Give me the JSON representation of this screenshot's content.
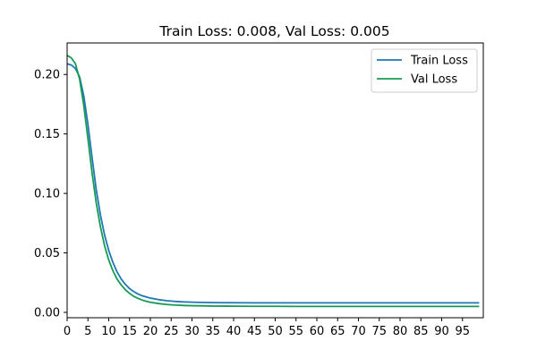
{
  "chart_data": {
    "type": "line",
    "title": "Train Loss: 0.008, Val Loss: 0.005",
    "xlabel": "",
    "ylabel": "",
    "xlim": [
      0,
      100
    ],
    "ylim": [
      -0.0045,
      0.2265
    ],
    "grid": false,
    "legend_position": "top-right",
    "x_ticks": [
      0,
      5,
      10,
      15,
      20,
      25,
      30,
      35,
      40,
      45,
      50,
      55,
      60,
      65,
      70,
      75,
      80,
      85,
      90,
      95
    ],
    "x_tick_labels": [
      "0",
      "5",
      "10",
      "15",
      "20",
      "25",
      "30",
      "35",
      "40",
      "45",
      "50",
      "55",
      "60",
      "65",
      "70",
      "75",
      "80",
      "85",
      "90",
      "95"
    ],
    "y_ticks": [
      0.0,
      0.05,
      0.1,
      0.15,
      0.2
    ],
    "y_tick_labels": [
      "0.00",
      "0.05",
      "0.10",
      "0.15",
      "0.20"
    ],
    "x": [
      0,
      1,
      2,
      3,
      4,
      5,
      6,
      7,
      8,
      9,
      10,
      11,
      12,
      13,
      14,
      15,
      16,
      17,
      18,
      19,
      20,
      22,
      24,
      26,
      28,
      30,
      32,
      35,
      40,
      45,
      50,
      55,
      60,
      65,
      70,
      75,
      80,
      85,
      90,
      95,
      99
    ],
    "series": [
      {
        "name": "Train Loss",
        "color": "#1f77b4",
        "values": [
          0.209,
          0.208,
          0.205,
          0.198,
          0.182,
          0.158,
          0.13,
          0.103,
          0.082,
          0.065,
          0.052,
          0.042,
          0.034,
          0.028,
          0.0235,
          0.02,
          0.0175,
          0.0155,
          0.014,
          0.013,
          0.012,
          0.0107,
          0.0098,
          0.0092,
          0.0088,
          0.0086,
          0.0084,
          0.0082,
          0.0081,
          0.008,
          0.008,
          0.008,
          0.008,
          0.008,
          0.008,
          0.008,
          0.008,
          0.008,
          0.008,
          0.008,
          0.008
        ]
      },
      {
        "name": "Val Loss",
        "color": "#169a53",
        "values": [
          0.216,
          0.214,
          0.209,
          0.196,
          0.174,
          0.146,
          0.117,
          0.092,
          0.072,
          0.056,
          0.044,
          0.035,
          0.028,
          0.023,
          0.019,
          0.016,
          0.0135,
          0.0118,
          0.0104,
          0.0093,
          0.0085,
          0.0074,
          0.0066,
          0.0061,
          0.0058,
          0.0056,
          0.0055,
          0.0053,
          0.0052,
          0.0051,
          0.0051,
          0.005,
          0.005,
          0.005,
          0.005,
          0.005,
          0.005,
          0.005,
          0.005,
          0.005,
          0.005
        ]
      }
    ]
  }
}
